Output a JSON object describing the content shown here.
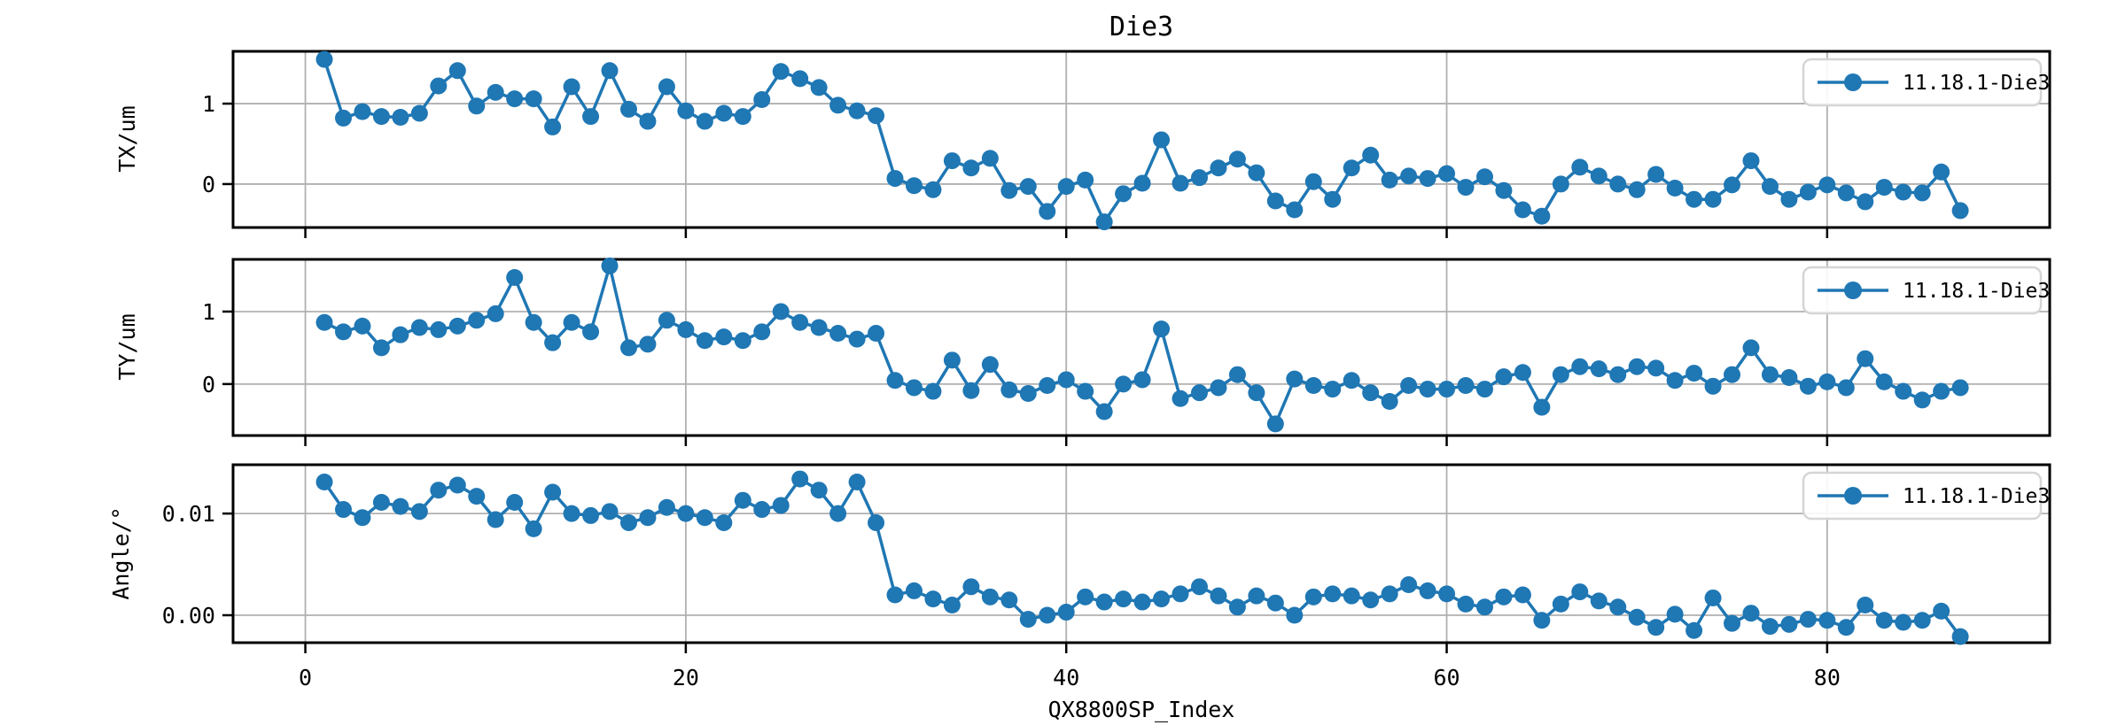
{
  "title": "Die3",
  "xlabel": "QX8800SP_Index",
  "legend_label": "11.18.1-Die3",
  "colors": {
    "series": "#1f77b4",
    "grid": "#b0b0b0",
    "spine": "#000000",
    "background": "#ffffff",
    "legend_border": "#d5d5d5",
    "text": "#000000"
  },
  "x_range": {
    "start": 1,
    "end": 87,
    "step": 1
  },
  "xlim": [
    -3.8,
    91.7
  ],
  "xticks": [
    {
      "v": 0,
      "label": "0"
    },
    {
      "v": 20,
      "label": "20"
    },
    {
      "v": 40,
      "label": "40"
    },
    {
      "v": 60,
      "label": "60"
    },
    {
      "v": 80,
      "label": "80"
    }
  ],
  "chart_data": [
    {
      "type": "line",
      "ylabel": "TX/um",
      "legend": "11.18.1-Die3",
      "legend_position": "upper right",
      "grid": true,
      "marker": "circle",
      "ylim": [
        -0.54,
        1.65
      ],
      "yticks": [
        {
          "v": 0,
          "label": "0"
        },
        {
          "v": 1,
          "label": "1"
        }
      ],
      "values": [
        1.55,
        0.82,
        0.9,
        0.84,
        0.83,
        0.88,
        1.22,
        1.41,
        0.97,
        1.14,
        1.06,
        1.06,
        0.71,
        1.21,
        0.84,
        1.41,
        0.93,
        0.78,
        1.21,
        0.91,
        0.78,
        0.88,
        0.84,
        1.05,
        1.4,
        1.31,
        1.2,
        0.98,
        0.91,
        0.85,
        0.07,
        -0.02,
        -0.07,
        0.29,
        0.2,
        0.32,
        -0.08,
        -0.03,
        -0.34,
        -0.03,
        0.05,
        -0.47,
        -0.12,
        0.01,
        0.55,
        0.01,
        0.08,
        0.2,
        0.31,
        0.14,
        -0.21,
        -0.32,
        0.03,
        -0.19,
        0.2,
        0.36,
        0.05,
        0.1,
        0.07,
        0.13,
        -0.04,
        0.09,
        -0.08,
        -0.32,
        -0.4,
        0.0,
        0.21,
        0.1,
        0.0,
        -0.07,
        0.12,
        -0.05,
        -0.19,
        -0.19,
        -0.01,
        0.29,
        -0.03,
        -0.19,
        -0.1,
        -0.01,
        -0.11,
        -0.22,
        -0.04,
        -0.1,
        -0.11,
        0.15,
        -0.33
      ]
    },
    {
      "type": "line",
      "ylabel": "TY/um",
      "legend": "11.18.1-Die3",
      "legend_position": "upper right",
      "grid": true,
      "marker": "circle",
      "ylim": [
        -0.71,
        1.72
      ],
      "yticks": [
        {
          "v": 0,
          "label": "0"
        },
        {
          "v": 1,
          "label": "1"
        }
      ],
      "values": [
        0.85,
        0.72,
        0.8,
        0.5,
        0.68,
        0.78,
        0.75,
        0.8,
        0.88,
        0.97,
        1.47,
        0.85,
        0.57,
        0.85,
        0.72,
        1.63,
        0.5,
        0.55,
        0.88,
        0.75,
        0.6,
        0.65,
        0.6,
        0.72,
        1.0,
        0.85,
        0.78,
        0.7,
        0.62,
        0.7,
        0.05,
        -0.05,
        -0.1,
        0.33,
        -0.09,
        0.27,
        -0.08,
        -0.13,
        -0.02,
        0.06,
        -0.1,
        -0.38,
        0.0,
        0.06,
        0.76,
        -0.2,
        -0.12,
        -0.05,
        0.13,
        -0.12,
        -0.55,
        0.07,
        -0.02,
        -0.07,
        0.05,
        -0.12,
        -0.24,
        -0.02,
        -0.07,
        -0.07,
        -0.02,
        -0.07,
        0.1,
        0.16,
        -0.32,
        0.13,
        0.24,
        0.21,
        0.13,
        0.24,
        0.22,
        0.05,
        0.15,
        -0.03,
        0.13,
        0.5,
        0.13,
        0.09,
        -0.03,
        0.03,
        -0.05,
        0.35,
        0.03,
        -0.1,
        -0.22,
        -0.1,
        -0.05
      ]
    },
    {
      "type": "line",
      "ylabel": "Angle/°",
      "legend": "11.18.1-Die3",
      "legend_position": "upper right",
      "grid": true,
      "marker": "circle",
      "ylim": [
        -0.0027,
        0.0148
      ],
      "yticks": [
        {
          "v": 0,
          "label": "0.00"
        },
        {
          "v": 0.01,
          "label": "0.01"
        }
      ],
      "values": [
        0.0131,
        0.0104,
        0.0096,
        0.0111,
        0.0107,
        0.0102,
        0.0123,
        0.0128,
        0.0117,
        0.0094,
        0.0111,
        0.0085,
        0.0121,
        0.01,
        0.0098,
        0.0102,
        0.0091,
        0.0096,
        0.0106,
        0.01,
        0.0096,
        0.0091,
        0.0113,
        0.0104,
        0.0108,
        0.0134,
        0.0123,
        0.01,
        0.0131,
        0.0091,
        0.002,
        0.0024,
        0.0016,
        0.001,
        0.0028,
        0.0018,
        0.0015,
        -0.0004,
        0.0,
        0.0003,
        0.0018,
        0.0013,
        0.0016,
        0.0013,
        0.0016,
        0.0021,
        0.0028,
        0.0019,
        0.0008,
        0.0019,
        0.0012,
        0.0,
        0.0018,
        0.0021,
        0.0019,
        0.0015,
        0.0021,
        0.003,
        0.0024,
        0.0021,
        0.0011,
        0.0008,
        0.0018,
        0.002,
        -0.0005,
        0.0011,
        0.0023,
        0.0014,
        0.0008,
        -0.0002,
        -0.0012,
        0.0001,
        -0.0015,
        0.0017,
        -0.0008,
        0.0002,
        -0.0011,
        -0.0009,
        -0.0004,
        -0.0005,
        -0.0012,
        0.001,
        -0.0005,
        -0.0007,
        -0.0005,
        0.0004,
        -0.0021
      ]
    }
  ]
}
